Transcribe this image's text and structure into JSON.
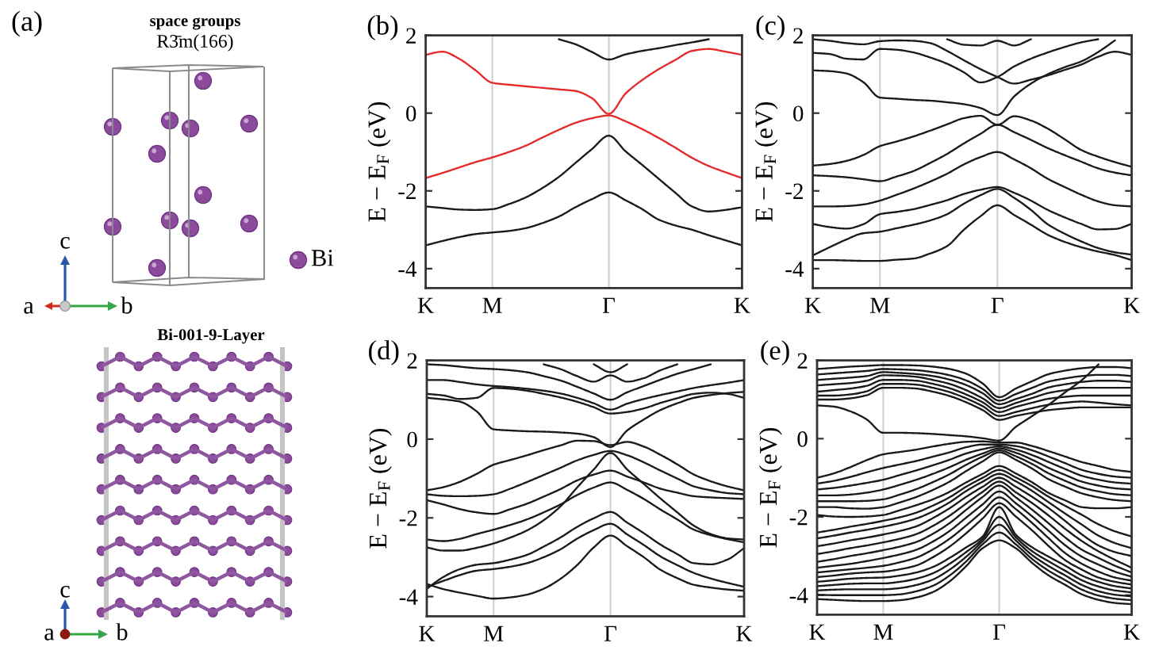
{
  "chart_data": [
    {
      "type": "other",
      "title": "(a)",
      "annotations": [
        "space groups",
        "R3̄m(166)",
        "c",
        "Bi",
        "a",
        "b",
        "Bi-001-9-Layer",
        "c",
        "a",
        "b"
      ]
    },
    {
      "type": "line",
      "title": "(b)",
      "ylabel": "E − E$_{F}$ (eV)",
      "categories": [
        "K",
        null,
        null,
        null,
        "M",
        null,
        null,
        null,
        null,
        null,
        null,
        "Γ",
        null,
        null,
        null,
        null,
        null,
        null,
        null,
        "K"
      ],
      "ylim": [
        -4.5,
        2
      ],
      "yticks": [
        -4,
        -2,
        0,
        2
      ],
      "grid": "x",
      "series": [
        {
          "color": "#e42b2b",
          "values": [
            1.5,
            1.58,
            1.4,
            1.1,
            0.78,
            0.73,
            0.69,
            0.65,
            0.61,
            0.57,
            0.38,
            -0.02,
            0.5,
            0.85,
            1.13,
            1.37,
            1.6,
            1.65,
            1.58,
            1.5
          ]
        },
        {
          "color": "#e42b2b",
          "values": [
            -1.67,
            -1.54,
            -1.4,
            -1.26,
            -1.14,
            -1.0,
            -0.84,
            -0.63,
            -0.43,
            -0.25,
            -0.13,
            -0.06,
            -0.21,
            -0.41,
            -0.64,
            -0.89,
            -1.15,
            -1.36,
            -1.52,
            -1.67
          ]
        },
        {
          "color": "#1a1a1a",
          "values": [
            -2.4,
            -2.44,
            -2.48,
            -2.49,
            -2.47,
            -2.34,
            -2.17,
            -1.93,
            -1.64,
            -1.28,
            -0.92,
            -0.58,
            -0.98,
            -1.33,
            -1.69,
            -2.05,
            -2.4,
            -2.53,
            -2.49,
            -2.42
          ]
        },
        {
          "color": "#1a1a1a",
          "values": [
            -3.4,
            -3.29,
            -3.19,
            -3.11,
            -3.07,
            -3.03,
            -2.96,
            -2.83,
            -2.66,
            -2.42,
            -2.21,
            -2.04,
            -2.24,
            -2.47,
            -2.74,
            -2.89,
            -3.0,
            -3.14,
            -3.27,
            -3.4
          ]
        },
        {
          "color": "#1a1a1a",
          "values": [
            null,
            null,
            null,
            null,
            null,
            null,
            null,
            null,
            1.9,
            1.77,
            1.57,
            1.38,
            1.51,
            1.6,
            1.67,
            1.75,
            1.82,
            1.9,
            null,
            null
          ]
        }
      ]
    },
    {
      "type": "line",
      "title": "(c)",
      "ylabel": "E − E$_{F}$ (eV)",
      "categories": [
        "K",
        null,
        null,
        null,
        "M",
        null,
        null,
        null,
        null,
        null,
        null,
        "Γ",
        null,
        null,
        null,
        null,
        null,
        null,
        null,
        "K"
      ],
      "ylim": [
        -4.5,
        2
      ],
      "yticks": [
        -4,
        -2,
        0,
        2
      ],
      "grid": "x",
      "series": [
        {
          "color": "#1a1a1a",
          "values": [
            -1.35,
            -1.31,
            -1.23,
            -1.08,
            -0.85,
            -0.73,
            -0.6,
            -0.45,
            -0.29,
            -0.13,
            -0.07,
            -0.3,
            -0.08,
            -0.19,
            -0.4,
            -0.67,
            -0.95,
            -1.12,
            -1.26,
            -1.38
          ]
        },
        {
          "color": "#1a1a1a",
          "values": [
            -1.6,
            -1.62,
            -1.65,
            -1.7,
            -1.75,
            -1.63,
            -1.49,
            -1.28,
            -1.05,
            -0.78,
            -0.53,
            -0.3,
            -0.49,
            -0.69,
            -0.9,
            -1.08,
            -1.25,
            -1.42,
            -1.53,
            -1.6
          ]
        },
        {
          "color": "#1a1a1a",
          "values": [
            -2.4,
            -2.4,
            -2.39,
            -2.35,
            -2.25,
            -2.1,
            -1.94,
            -1.76,
            -1.56,
            -1.32,
            -1.13,
            -1.0,
            -1.19,
            -1.42,
            -1.69,
            -1.9,
            -2.1,
            -2.27,
            -2.37,
            -2.4
          ]
        },
        {
          "color": "#1a1a1a",
          "values": [
            -2.85,
            -2.93,
            -2.97,
            -2.86,
            -2.6,
            -2.54,
            -2.47,
            -2.36,
            -2.24,
            -2.08,
            -1.97,
            -1.9,
            -2.05,
            -2.25,
            -2.49,
            -2.68,
            -2.85,
            -2.99,
            -2.98,
            -2.85
          ]
        },
        {
          "color": "#1a1a1a",
          "values": [
            -3.66,
            -3.45,
            -3.25,
            -3.09,
            -3.05,
            -2.96,
            -2.87,
            -2.76,
            -2.6,
            -2.33,
            -2.11,
            -1.95,
            -2.18,
            -2.49,
            -2.86,
            -3.1,
            -3.3,
            -3.47,
            -3.58,
            -3.64
          ]
        },
        {
          "color": "#1a1a1a",
          "values": [
            -3.78,
            -3.78,
            -3.79,
            -3.8,
            -3.8,
            -3.77,
            -3.74,
            -3.61,
            -3.42,
            -3.0,
            -2.65,
            -2.37,
            -2.62,
            -2.87,
            -3.13,
            -3.31,
            -3.45,
            -3.56,
            -3.65,
            -3.78
          ]
        },
        {
          "color": "#1a1a1a",
          "values": [
            1.1,
            1.08,
            1.02,
            0.8,
            0.4,
            0.37,
            0.34,
            0.32,
            0.28,
            0.23,
            0.13,
            -0.05,
            0.43,
            0.76,
            1.0,
            1.18,
            1.33,
            1.57,
            1.87,
            null
          ]
        },
        {
          "color": "#1a1a1a",
          "values": [
            1.55,
            1.52,
            1.4,
            1.38,
            1.65,
            1.63,
            1.56,
            1.43,
            1.27,
            1.05,
            0.79,
            0.93,
            1.2,
            1.4,
            1.56,
            1.7,
            1.82,
            1.9,
            null,
            null
          ]
        },
        {
          "color": "#1a1a1a",
          "values": [
            1.9,
            1.86,
            1.8,
            1.77,
            1.85,
            1.87,
            1.86,
            1.8,
            1.6,
            1.36,
            1.13,
            0.93,
            0.76,
            0.86,
            0.97,
            1.11,
            1.25,
            1.45,
            1.58,
            1.5
          ]
        },
        {
          "color": "#1a1a1a",
          "values": [
            null,
            null,
            null,
            null,
            null,
            null,
            null,
            null,
            1.9,
            1.76,
            1.74,
            1.86,
            1.74,
            1.9,
            null,
            null,
            null,
            null,
            null,
            null
          ]
        }
      ]
    },
    {
      "type": "line",
      "title": "(d)",
      "ylabel": "E − E$_{F}$ (eV)",
      "categories": [
        "K",
        null,
        null,
        null,
        "M",
        null,
        null,
        null,
        null,
        null,
        null,
        "Γ",
        null,
        null,
        null,
        null,
        null,
        null,
        null,
        "K"
      ],
      "ylim": [
        -4.5,
        2
      ],
      "yticks": [
        -4,
        -2,
        0,
        2
      ],
      "grid": "x",
      "series": [
        {
          "color": "#1a1a1a",
          "values": [
            -3.68,
            -3.81,
            -3.9,
            -3.98,
            -4.05,
            -4.02,
            -3.95,
            -3.8,
            -3.55,
            -3.2,
            -2.75,
            -2.45,
            -2.72,
            -3.0,
            -3.32,
            -3.53,
            -3.7,
            -3.77,
            -3.82,
            -3.85
          ]
        },
        {
          "color": "#1a1a1a",
          "values": [
            -3.75,
            -3.6,
            -3.45,
            -3.34,
            -3.3,
            -3.24,
            -3.15,
            -3.0,
            -2.8,
            -2.53,
            -2.31,
            -2.15,
            -2.42,
            -2.69,
            -2.98,
            -3.2,
            -3.4,
            -3.54,
            -3.65,
            -3.75
          ]
        },
        {
          "color": "#1a1a1a",
          "values": [
            -3.8,
            -3.5,
            -3.3,
            -3.19,
            -3.15,
            -3.06,
            -2.94,
            -2.73,
            -2.5,
            -2.23,
            -2.01,
            -1.85,
            -2.12,
            -2.39,
            -2.68,
            -2.92,
            -3.15,
            -3.18,
            -3.06,
            -2.77
          ]
        },
        {
          "color": "#1a1a1a",
          "values": [
            -2.75,
            -2.83,
            -2.83,
            -2.76,
            -2.65,
            -2.5,
            -2.32,
            -2.06,
            -1.71,
            -1.23,
            -0.77,
            -0.35,
            -0.77,
            -1.14,
            -1.51,
            -1.86,
            -2.2,
            -2.41,
            -2.52,
            -2.55
          ]
        },
        {
          "color": "#1a1a1a",
          "values": [
            -2.55,
            -2.59,
            -2.53,
            -2.41,
            -2.3,
            -2.18,
            -2.04,
            -1.86,
            -1.66,
            -1.42,
            -1.23,
            -1.1,
            -1.29,
            -1.52,
            -1.79,
            -2.04,
            -2.3,
            -2.44,
            -2.54,
            -2.62
          ]
        },
        {
          "color": "#1a1a1a",
          "values": [
            -1.55,
            -1.66,
            -1.78,
            -1.86,
            -1.9,
            -1.78,
            -1.64,
            -1.46,
            -1.27,
            -1.05,
            -0.9,
            -0.8,
            -0.95,
            -1.1,
            -1.26,
            -1.36,
            -1.45,
            -1.48,
            -1.5,
            -1.52
          ]
        },
        {
          "color": "#1a1a1a",
          "values": [
            -1.4,
            -1.44,
            -1.45,
            -1.44,
            -1.4,
            -1.26,
            -1.09,
            -0.91,
            -0.73,
            -0.54,
            -0.4,
            -0.3,
            -0.41,
            -0.59,
            -0.8,
            -1.0,
            -1.2,
            -1.3,
            -1.37,
            -1.4
          ]
        },
        {
          "color": "#1a1a1a",
          "values": [
            -1.3,
            -1.22,
            -1.08,
            -0.88,
            -0.65,
            -0.53,
            -0.41,
            -0.28,
            -0.16,
            -0.04,
            -0.05,
            -0.15,
            -0.07,
            -0.19,
            -0.4,
            -0.64,
            -0.9,
            -1.07,
            -1.2,
            -1.3
          ]
        },
        {
          "color": "#1a1a1a",
          "values": [
            1.05,
            1.01,
            0.95,
            0.7,
            0.25,
            0.22,
            0.2,
            0.19,
            0.17,
            0.14,
            0.05,
            -0.2,
            0.22,
            0.5,
            0.74,
            0.91,
            1.05,
            1.12,
            1.17,
            1.2
          ]
        },
        {
          "color": "#1a1a1a",
          "values": [
            1.15,
            1.11,
            1.02,
            1.05,
            1.3,
            1.28,
            1.23,
            1.15,
            1.06,
            0.95,
            0.81,
            0.65,
            0.69,
            0.78,
            0.92,
            1.04,
            1.15,
            1.18,
            1.15,
            1.05
          ]
        },
        {
          "color": "#1a1a1a",
          "values": [
            1.5,
            1.5,
            1.45,
            1.39,
            1.35,
            1.32,
            1.28,
            1.23,
            1.16,
            1.05,
            0.91,
            0.75,
            0.9,
            1.02,
            1.12,
            1.21,
            1.3,
            1.37,
            1.43,
            1.5
          ]
        },
        {
          "color": "#1a1a1a",
          "values": [
            1.9,
            1.88,
            1.84,
            1.8,
            1.78,
            1.75,
            1.7,
            1.6,
            1.49,
            1.33,
            1.16,
            1.0,
            1.19,
            1.35,
            1.51,
            1.66,
            1.78,
            1.9,
            null,
            null
          ]
        },
        {
          "color": "#1a1a1a",
          "values": [
            null,
            null,
            null,
            null,
            null,
            null,
            null,
            null,
            null,
            null,
            1.9,
            1.7,
            1.9,
            null,
            null,
            null,
            null,
            null,
            null,
            null
          ]
        },
        {
          "color": "#1a1a1a",
          "values": [
            null,
            null,
            null,
            null,
            null,
            null,
            null,
            1.9,
            1.78,
            1.6,
            1.46,
            1.62,
            1.46,
            1.55,
            1.75,
            1.9,
            null,
            null,
            null,
            null
          ]
        }
      ]
    },
    {
      "type": "line",
      "title": "(e)",
      "ylabel": "E − E$_{F}$ (eV)",
      "categories": [
        "K",
        null,
        null,
        null,
        "M",
        null,
        null,
        null,
        null,
        null,
        null,
        "Γ",
        null,
        null,
        null,
        null,
        null,
        null,
        null,
        "K"
      ],
      "ylim": [
        -4.5,
        2
      ],
      "yticks": [
        -4,
        -2,
        0,
        2
      ],
      "grid": "x",
      "series": [
        {
          "color": "#1a1a1a",
          "values": [
            1.0,
            1.0,
            1.03,
            1.11,
            1.3,
            1.3,
            1.28,
            1.2,
            1.09,
            0.93,
            0.73,
            0.48,
            0.58,
            0.66,
            0.73,
            0.77,
            0.8,
            0.8,
            0.8,
            0.8
          ]
        },
        {
          "color": "#1a1a1a",
          "values": [
            1.1,
            1.1,
            1.13,
            1.21,
            1.4,
            1.4,
            1.38,
            1.3,
            1.19,
            1.03,
            0.83,
            0.58,
            0.68,
            0.78,
            0.87,
            0.92,
            0.95,
            0.92,
            0.88,
            0.85
          ]
        },
        {
          "color": "#1a1a1a",
          "values": [
            1.2,
            1.24,
            1.28,
            1.35,
            1.5,
            1.5,
            1.48,
            1.4,
            1.29,
            1.13,
            0.93,
            0.68,
            0.81,
            0.92,
            1.02,
            1.07,
            1.1,
            1.1,
            1.1,
            1.1
          ]
        },
        {
          "color": "#1a1a1a",
          "values": [
            1.36,
            1.39,
            1.42,
            1.48,
            1.62,
            1.61,
            1.58,
            1.5,
            1.4,
            1.24,
            1.03,
            0.78,
            0.91,
            1.04,
            1.17,
            1.24,
            1.3,
            1.3,
            1.3,
            1.3
          ]
        },
        {
          "color": "#1a1a1a",
          "values": [
            1.5,
            1.53,
            1.56,
            1.6,
            1.7,
            1.68,
            1.65,
            1.6,
            1.51,
            1.37,
            1.16,
            0.88,
            1.01,
            1.15,
            1.31,
            1.39,
            1.45,
            1.48,
            1.48,
            1.45
          ]
        },
        {
          "color": "#1a1a1a",
          "values": [
            1.64,
            1.67,
            1.7,
            1.73,
            1.78,
            1.77,
            1.75,
            1.7,
            1.62,
            1.49,
            1.27,
            0.97,
            1.14,
            1.3,
            1.46,
            1.54,
            1.6,
            1.63,
            1.63,
            1.6
          ]
        },
        {
          "color": "#1a1a1a",
          "values": [
            1.78,
            1.81,
            1.84,
            1.86,
            1.88,
            1.88,
            1.87,
            1.84,
            1.78,
            1.66,
            1.41,
            1.06,
            1.28,
            1.47,
            1.65,
            1.74,
            1.8,
            1.83,
            1.83,
            1.8
          ]
        },
        {
          "color": "#1a1a1a",
          "values": [
            0.85,
            0.82,
            0.7,
            0.49,
            0.15,
            0.15,
            0.14,
            0.12,
            0.09,
            0.06,
            0.01,
            -0.05,
            0.3,
            0.58,
            0.87,
            1.19,
            1.5,
            1.9,
            null,
            null
          ]
        },
        {
          "color": "#1a1a1a",
          "values": [
            -1.0,
            -0.89,
            -0.73,
            -0.55,
            -0.4,
            -0.34,
            -0.28,
            -0.2,
            -0.13,
            -0.08,
            -0.07,
            -0.1,
            -0.1,
            -0.19,
            -0.32,
            -0.46,
            -0.6,
            -0.7,
            -0.8,
            -0.85
          ]
        },
        {
          "color": "#1a1a1a",
          "values": [
            -1.15,
            -1.08,
            -0.98,
            -0.86,
            -0.75,
            -0.66,
            -0.57,
            -0.46,
            -0.35,
            -0.22,
            -0.15,
            -0.15,
            -0.19,
            -0.3,
            -0.46,
            -0.63,
            -0.8,
            -0.9,
            -0.97,
            -1.0
          ]
        },
        {
          "color": "#1a1a1a",
          "values": [
            -1.3,
            -1.26,
            -1.2,
            -1.13,
            -1.05,
            -0.93,
            -0.81,
            -0.68,
            -0.54,
            -0.38,
            -0.27,
            -0.2,
            -0.28,
            -0.42,
            -0.6,
            -0.78,
            -0.95,
            -1.05,
            -1.12,
            -1.15
          ]
        },
        {
          "color": "#1a1a1a",
          "values": [
            -1.45,
            -1.45,
            -1.43,
            -1.38,
            -1.3,
            -1.18,
            -1.05,
            -0.9,
            -0.73,
            -0.54,
            -0.38,
            -0.25,
            -0.36,
            -0.54,
            -0.75,
            -0.93,
            -1.1,
            -1.2,
            -1.27,
            -1.3
          ]
        },
        {
          "color": "#1a1a1a",
          "values": [
            -1.6,
            -1.6,
            -1.6,
            -1.59,
            -1.55,
            -1.43,
            -1.29,
            -1.11,
            -0.91,
            -0.67,
            -0.46,
            -0.3,
            -0.45,
            -0.65,
            -0.89,
            -1.08,
            -1.25,
            -1.35,
            -1.42,
            -1.45
          ]
        },
        {
          "color": "#1a1a1a",
          "values": [
            -1.75,
            -1.75,
            -1.78,
            -1.79,
            -1.75,
            -1.63,
            -1.49,
            -1.31,
            -1.1,
            -0.83,
            -0.58,
            -0.35,
            -0.54,
            -0.77,
            -1.04,
            -1.23,
            -1.4,
            -1.5,
            -1.57,
            -1.6
          ]
        },
        {
          "color": "#1a1a1a",
          "values": [
            -1.95,
            -1.99,
            -2.0,
            -1.99,
            -1.95,
            -1.83,
            -1.7,
            -1.55,
            -1.36,
            -1.12,
            -0.9,
            -0.7,
            -0.89,
            -1.12,
            -1.39,
            -1.58,
            -1.75,
            -1.78,
            -1.78,
            -1.75
          ]
        },
        {
          "color": "#1a1a1a",
          "values": [
            -2.4,
            -2.33,
            -2.25,
            -2.18,
            -2.1,
            -2.01,
            -1.89,
            -1.71,
            -1.5,
            -1.23,
            -1.0,
            -0.8,
            -0.99,
            -1.22,
            -1.49,
            -1.72,
            -1.95,
            -2.19,
            -2.37,
            -2.5
          ]
        },
        {
          "color": "#1a1a1a",
          "values": [
            -2.55,
            -2.48,
            -2.4,
            -2.33,
            -2.25,
            -2.16,
            -2.04,
            -1.86,
            -1.63,
            -1.34,
            -1.1,
            -0.9,
            -1.09,
            -1.34,
            -1.63,
            -1.92,
            -2.2,
            -2.48,
            -2.67,
            -2.8
          ]
        },
        {
          "color": "#1a1a1a",
          "values": [
            -2.75,
            -2.68,
            -2.6,
            -2.53,
            -2.45,
            -2.36,
            -2.24,
            -2.03,
            -1.78,
            -1.49,
            -1.23,
            -1.0,
            -1.23,
            -1.49,
            -1.78,
            -2.11,
            -2.45,
            -2.73,
            -2.9,
            -3.0
          ]
        },
        {
          "color": "#1a1a1a",
          "values": [
            -2.95,
            -2.88,
            -2.8,
            -2.73,
            -2.65,
            -2.56,
            -2.44,
            -2.23,
            -1.97,
            -1.66,
            -1.36,
            -1.1,
            -1.37,
            -1.65,
            -1.97,
            -2.31,
            -2.62,
            -2.88,
            -3.1,
            -3.3
          ]
        },
        {
          "color": "#1a1a1a",
          "values": [
            -3.15,
            -3.08,
            -3.0,
            -2.93,
            -2.85,
            -2.76,
            -2.64,
            -2.43,
            -2.16,
            -1.82,
            -1.49,
            -1.2,
            -1.5,
            -1.82,
            -2.17,
            -2.53,
            -2.84,
            -3.05,
            -3.25,
            -3.42
          ]
        },
        {
          "color": "#1a1a1a",
          "values": [
            -3.3,
            -3.25,
            -3.2,
            -3.13,
            -3.05,
            -2.96,
            -2.84,
            -2.63,
            -2.36,
            -2.02,
            -1.68,
            -1.35,
            -1.65,
            -1.99,
            -2.36,
            -2.73,
            -3.02,
            -3.22,
            -3.4,
            -3.53
          ]
        },
        {
          "color": "#1a1a1a",
          "values": [
            -3.42,
            -3.38,
            -3.34,
            -3.3,
            -3.25,
            -3.16,
            -3.04,
            -2.83,
            -2.56,
            -2.22,
            -1.86,
            -1.5,
            -1.8,
            -2.16,
            -2.55,
            -2.93,
            -3.2,
            -3.4,
            -3.55,
            -3.63
          ]
        },
        {
          "color": "#1a1a1a",
          "values": [
            -3.54,
            -3.5,
            -3.45,
            -3.42,
            -3.4,
            -3.34,
            -3.24,
            -3.03,
            -2.76,
            -2.42,
            -2.04,
            -1.65,
            -1.99,
            -2.35,
            -2.75,
            -3.11,
            -3.35,
            -3.55,
            -3.66,
            -3.73
          ]
        },
        {
          "color": "#1a1a1a",
          "values": [
            -3.66,
            -3.62,
            -3.58,
            -3.56,
            -3.55,
            -3.5,
            -3.42,
            -3.28,
            -3.05,
            -2.78,
            -2.5,
            -1.75,
            -2.45,
            -2.78,
            -3.02,
            -3.25,
            -3.5,
            -3.66,
            -3.77,
            -3.83
          ]
        },
        {
          "color": "#1a1a1a",
          "values": [
            -3.77,
            -3.74,
            -3.71,
            -3.7,
            -3.7,
            -3.66,
            -3.58,
            -3.44,
            -3.2,
            -2.9,
            -2.56,
            -2.0,
            -2.52,
            -2.88,
            -3.14,
            -3.38,
            -3.62,
            -3.78,
            -3.88,
            -3.93
          ]
        },
        {
          "color": "#1a1a1a",
          "values": [
            -3.88,
            -3.86,
            -3.85,
            -3.85,
            -3.85,
            -3.82,
            -3.74,
            -3.6,
            -3.35,
            -3.02,
            -2.62,
            -2.2,
            -2.6,
            -2.98,
            -3.26,
            -3.5,
            -3.74,
            -3.9,
            -3.99,
            -4.03
          ]
        },
        {
          "color": "#1a1a1a",
          "values": [
            -3.99,
            -4.0,
            -4.0,
            -4.0,
            -4.0,
            -3.98,
            -3.9,
            -3.76,
            -3.5,
            -3.14,
            -2.7,
            -2.4,
            -2.7,
            -3.08,
            -3.38,
            -3.62,
            -3.86,
            -4.01,
            -4.09,
            -4.13
          ]
        },
        {
          "color": "#1a1a1a",
          "values": [
            -4.1,
            -4.12,
            -4.14,
            -4.15,
            -4.15,
            -4.13,
            -4.06,
            -3.92,
            -3.65,
            -3.26,
            -2.8,
            -2.6,
            -2.8,
            -3.18,
            -3.5,
            -3.74,
            -3.98,
            -4.12,
            -4.2,
            -4.23
          ]
        }
      ]
    }
  ]
}
